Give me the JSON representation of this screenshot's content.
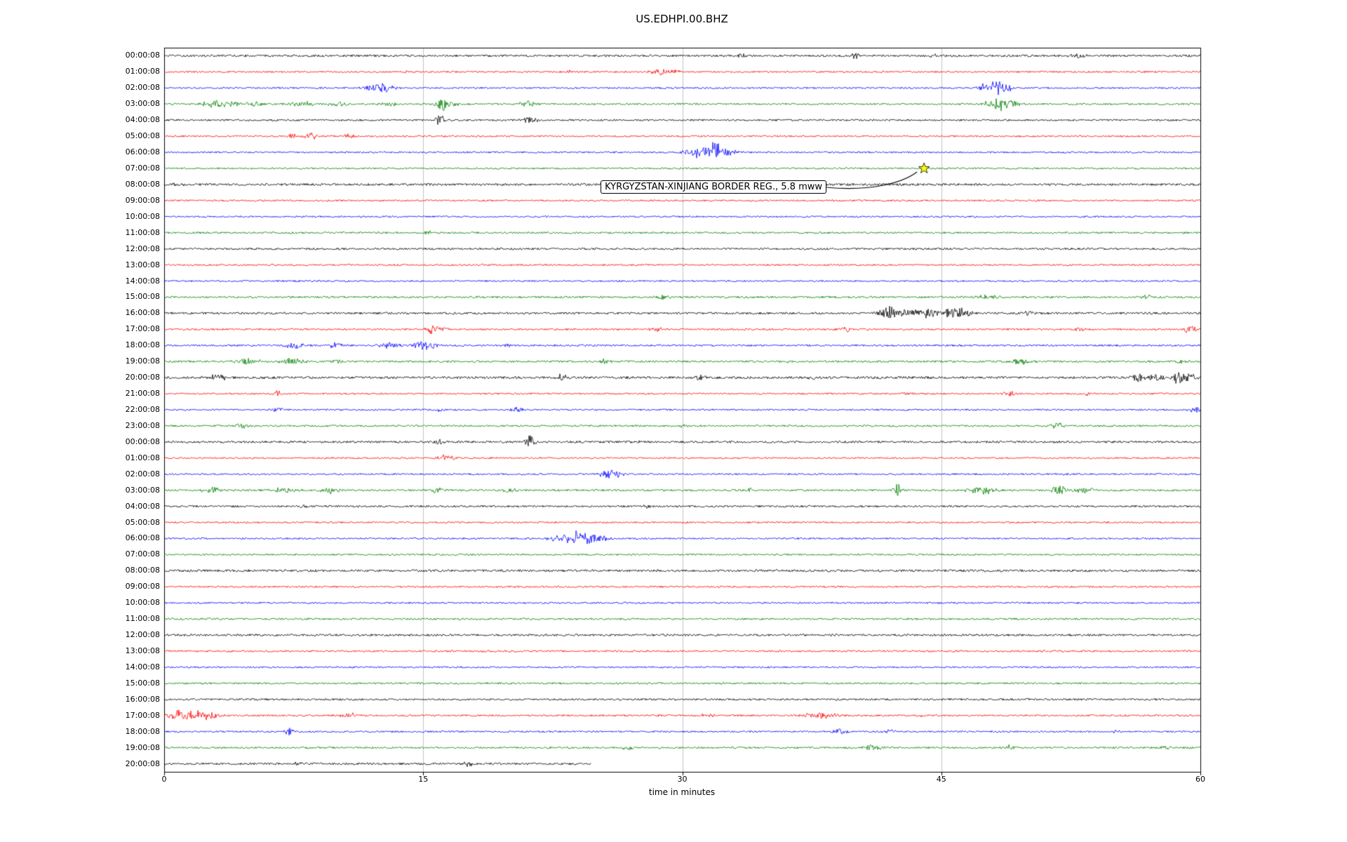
{
  "colors": {
    "black": "#000000",
    "red": "#ff0000",
    "blue": "#0000ff",
    "green": "#008000",
    "grid": "#c3c3c3",
    "star_fill": "#ffff00",
    "star_edge": "#000000"
  },
  "chart_data": {
    "type": "line",
    "subtype": "seismogram-dayplot",
    "title": "US.EDHPI.00.BHZ",
    "xlabel": "time in minutes",
    "xlim": [
      0,
      60
    ],
    "x_ticks": [
      0,
      15,
      30,
      45,
      60
    ],
    "grid": true,
    "annotation": {
      "text": "KYRGYZSTAN-XINJIANG BORDER REG., 5.8 mww",
      "row": 7,
      "x_min": 44,
      "marker": "yellow-star"
    },
    "rows": [
      {
        "label": "00:00:08",
        "color": "black",
        "noise": 1.5,
        "events": [
          [
            33.5,
            2.5,
            0.2
          ],
          [
            40,
            4,
            0.15
          ],
          [
            44.5,
            2,
            0.2
          ],
          [
            53,
            3,
            0.35
          ]
        ]
      },
      {
        "label": "01:00:08",
        "color": "red",
        "noise": 1.2,
        "events": [
          [
            14,
            2.5,
            0.2
          ],
          [
            23.5,
            2,
            0.15
          ],
          [
            28.8,
            5,
            0.45
          ],
          [
            29.4,
            4,
            0.3
          ]
        ]
      },
      {
        "label": "02:00:08",
        "color": "blue",
        "noise": 1.2,
        "events": [
          [
            12.3,
            6,
            0.5
          ],
          [
            12.9,
            4,
            0.4
          ],
          [
            47.5,
            5,
            0.3
          ],
          [
            48,
            9,
            0.4
          ],
          [
            48.6,
            8,
            0.35
          ]
        ]
      },
      {
        "label": "03:00:08",
        "color": "green",
        "noise": 1.3,
        "events": [
          [
            2.8,
            5,
            0.4
          ],
          [
            3.8,
            4,
            0.5
          ],
          [
            5.2,
            3,
            0.4
          ],
          [
            8,
            3.5,
            0.6
          ],
          [
            10,
            3,
            0.4
          ],
          [
            13,
            3,
            0.3
          ],
          [
            16,
            10,
            0.25
          ],
          [
            16.3,
            5,
            0.5
          ],
          [
            21,
            4,
            0.3
          ],
          [
            47.6,
            4,
            0.3
          ],
          [
            48.3,
            11,
            0.3
          ],
          [
            48.9,
            6,
            0.5
          ]
        ]
      },
      {
        "label": "04:00:08",
        "color": "black",
        "noise": 1.3,
        "events": [
          [
            16,
            9,
            0.18
          ],
          [
            21,
            4,
            0.25
          ],
          [
            21.4,
            3,
            0.2
          ]
        ]
      },
      {
        "label": "05:00:08",
        "color": "red",
        "noise": 1.2,
        "events": [
          [
            7.4,
            4,
            0.2
          ],
          [
            8.5,
            6,
            0.22
          ],
          [
            10.7,
            4,
            0.18
          ]
        ]
      },
      {
        "label": "06:00:08",
        "color": "blue",
        "noise": 1.2,
        "events": [
          [
            30.5,
            4,
            0.4
          ],
          [
            31.2,
            7,
            0.45
          ],
          [
            31.9,
            12,
            0.3
          ],
          [
            32.4,
            6,
            0.5
          ]
        ]
      },
      {
        "label": "07:00:08",
        "color": "green",
        "noise": 1.2,
        "events": []
      },
      {
        "label": "08:00:08",
        "color": "black",
        "noise": 1.6,
        "events": [
          [
            1,
            2.5,
            0.4
          ]
        ]
      },
      {
        "label": "09:00:08",
        "color": "red",
        "noise": 1.2,
        "events": []
      },
      {
        "label": "10:00:08",
        "color": "blue",
        "noise": 1.2,
        "events": []
      },
      {
        "label": "11:00:08",
        "color": "green",
        "noise": 1.3,
        "events": [
          [
            15.3,
            2.5,
            0.3
          ]
        ]
      },
      {
        "label": "12:00:08",
        "color": "black",
        "noise": 1.4,
        "events": []
      },
      {
        "label": "13:00:08",
        "color": "red",
        "noise": 1.2,
        "events": []
      },
      {
        "label": "14:00:08",
        "color": "blue",
        "noise": 1.2,
        "events": []
      },
      {
        "label": "15:00:08",
        "color": "green",
        "noise": 1.4,
        "events": [
          [
            29,
            3,
            0.4
          ],
          [
            47.5,
            3.5,
            0.5
          ],
          [
            57,
            2.5,
            0.3
          ]
        ]
      },
      {
        "label": "16:00:08",
        "color": "black",
        "noise": 1.5,
        "events": [
          [
            42,
            10,
            0.45
          ],
          [
            42.8,
            6,
            0.55
          ],
          [
            43.6,
            5,
            0.5
          ],
          [
            44.5,
            4,
            0.5
          ],
          [
            45.7,
            7,
            0.5
          ],
          [
            46.3,
            4,
            0.4
          ],
          [
            50,
            2.5,
            0.3
          ]
        ]
      },
      {
        "label": "17:00:08",
        "color": "red",
        "noise": 1.3,
        "events": [
          [
            15.5,
            6,
            0.28
          ],
          [
            15.9,
            4,
            0.3
          ],
          [
            28.5,
            3,
            0.25
          ],
          [
            39.5,
            4,
            0.2
          ],
          [
            53,
            2.5,
            0.2
          ],
          [
            59.4,
            5,
            0.3
          ]
        ]
      },
      {
        "label": "18:00:08",
        "color": "blue",
        "noise": 1.3,
        "events": [
          [
            7.5,
            4,
            0.4
          ],
          [
            10,
            4,
            0.4
          ],
          [
            13,
            4.5,
            0.45
          ],
          [
            15,
            6,
            0.4
          ],
          [
            15.5,
            4,
            0.3
          ],
          [
            20,
            2.5,
            0.2
          ]
        ]
      },
      {
        "label": "19:00:08",
        "color": "green",
        "noise": 1.4,
        "events": [
          [
            4.8,
            4,
            0.5
          ],
          [
            7.4,
            4.5,
            0.5
          ],
          [
            10,
            3,
            0.3
          ],
          [
            25.5,
            4.5,
            0.3
          ],
          [
            36,
            2.5,
            0.2
          ],
          [
            49.5,
            4,
            0.5
          ],
          [
            58.8,
            3.5,
            0.3
          ]
        ]
      },
      {
        "label": "20:00:08",
        "color": "black",
        "noise": 1.7,
        "events": [
          [
            3,
            3.5,
            0.6
          ],
          [
            23,
            4,
            0.3
          ],
          [
            31,
            3,
            0.25
          ],
          [
            37.5,
            3,
            0.25
          ],
          [
            56.3,
            6,
            0.3
          ],
          [
            57.5,
            5,
            0.4
          ],
          [
            58.7,
            7,
            0.35
          ],
          [
            59.3,
            6,
            0.3
          ]
        ]
      },
      {
        "label": "21:00:08",
        "color": "red",
        "noise": 1.2,
        "events": [
          [
            6.5,
            4,
            0.25
          ],
          [
            43,
            2,
            0.2
          ],
          [
            49,
            3.5,
            0.3
          ],
          [
            53.5,
            2.5,
            0.2
          ]
        ]
      },
      {
        "label": "22:00:08",
        "color": "blue",
        "noise": 1.2,
        "events": [
          [
            6.7,
            4,
            0.25
          ],
          [
            16,
            2.5,
            0.2
          ],
          [
            20.4,
            4,
            0.3
          ],
          [
            59.8,
            5,
            0.3
          ]
        ]
      },
      {
        "label": "23:00:08",
        "color": "green",
        "noise": 1.3,
        "events": [
          [
            4.5,
            3.5,
            0.25
          ],
          [
            30,
            2,
            0.2
          ],
          [
            51.7,
            5,
            0.3
          ]
        ]
      },
      {
        "label": "00:00:08",
        "color": "black",
        "noise": 1.5,
        "events": [
          [
            16,
            3,
            0.2
          ],
          [
            21.2,
            9,
            0.22
          ],
          [
            27.5,
            2.5,
            0.2
          ]
        ]
      },
      {
        "label": "01:00:08",
        "color": "red",
        "noise": 1.2,
        "events": [
          [
            16.1,
            5,
            0.3
          ],
          [
            16.6,
            3,
            0.3
          ]
        ]
      },
      {
        "label": "02:00:08",
        "color": "blue",
        "noise": 1.2,
        "events": [
          [
            25.7,
            5,
            0.4
          ],
          [
            26.2,
            3.5,
            0.3
          ],
          [
            52,
            2.5,
            0.25
          ]
        ]
      },
      {
        "label": "03:00:08",
        "color": "green",
        "noise": 1.4,
        "events": [
          [
            2.7,
            4,
            0.4
          ],
          [
            7,
            4,
            0.5
          ],
          [
            9.7,
            4.5,
            0.4
          ],
          [
            15.7,
            4,
            0.3
          ],
          [
            20,
            3,
            0.3
          ],
          [
            34,
            2.5,
            0.2
          ],
          [
            42.5,
            9,
            0.25
          ],
          [
            47,
            5,
            0.45
          ],
          [
            47.7,
            4,
            0.4
          ],
          [
            51.8,
            8,
            0.28
          ],
          [
            53.2,
            4,
            0.4
          ]
        ]
      },
      {
        "label": "04:00:08",
        "color": "black",
        "noise": 1.4,
        "events": [
          [
            8,
            2,
            0.2
          ],
          [
            28,
            3,
            0.25
          ]
        ]
      },
      {
        "label": "05:00:08",
        "color": "red",
        "noise": 1.2,
        "events": []
      },
      {
        "label": "06:00:08",
        "color": "blue",
        "noise": 1.2,
        "events": [
          [
            22.5,
            3,
            0.3
          ],
          [
            23.3,
            5,
            0.45
          ],
          [
            24,
            10,
            0.35
          ],
          [
            24.6,
            7,
            0.4
          ],
          [
            25.2,
            4,
            0.4
          ]
        ]
      },
      {
        "label": "07:00:08",
        "color": "green",
        "noise": 1.2,
        "events": []
      },
      {
        "label": "08:00:08",
        "color": "black",
        "noise": 1.6,
        "events": []
      },
      {
        "label": "09:00:08",
        "color": "red",
        "noise": 1.2,
        "events": []
      },
      {
        "label": "10:00:08",
        "color": "blue",
        "noise": 1.2,
        "events": []
      },
      {
        "label": "11:00:08",
        "color": "green",
        "noise": 1.3,
        "events": []
      },
      {
        "label": "12:00:08",
        "color": "black",
        "noise": 1.5,
        "events": []
      },
      {
        "label": "13:00:08",
        "color": "red",
        "noise": 1.3,
        "events": []
      },
      {
        "label": "14:00:08",
        "color": "blue",
        "noise": 1.2,
        "events": []
      },
      {
        "label": "15:00:08",
        "color": "green",
        "noise": 1.3,
        "events": []
      },
      {
        "label": "16:00:08",
        "color": "black",
        "noise": 1.4,
        "events": []
      },
      {
        "label": "17:00:08",
        "color": "red",
        "noise": 1.3,
        "events": [
          [
            0.5,
            5,
            0.4
          ],
          [
            1.2,
            6,
            0.5
          ],
          [
            2,
            5,
            0.5
          ],
          [
            2.8,
            4,
            0.4
          ],
          [
            10.7,
            4,
            0.3
          ],
          [
            31.5,
            3,
            0.3
          ],
          [
            37.8,
            4.5,
            0.5
          ],
          [
            38.6,
            3.5,
            0.4
          ],
          [
            44,
            2.5,
            0.2
          ]
        ]
      },
      {
        "label": "18:00:08",
        "color": "blue",
        "noise": 1.2,
        "events": [
          [
            7.2,
            5,
            0.18
          ],
          [
            39.2,
            4,
            0.3
          ],
          [
            42,
            3,
            0.25
          ],
          [
            55,
            2.5,
            0.2
          ]
        ]
      },
      {
        "label": "19:00:08",
        "color": "green",
        "noise": 1.3,
        "events": [
          [
            26.8,
            3,
            0.25
          ],
          [
            41,
            3.5,
            0.4
          ],
          [
            48.9,
            3.5,
            0.3
          ],
          [
            58,
            2.5,
            0.2
          ]
        ]
      },
      {
        "label": "20:00:08",
        "color": "black",
        "noise": 1.5,
        "end": 24.7,
        "events": [
          [
            7.8,
            3,
            0.2
          ],
          [
            17.6,
            3.5,
            0.2
          ]
        ]
      }
    ]
  }
}
